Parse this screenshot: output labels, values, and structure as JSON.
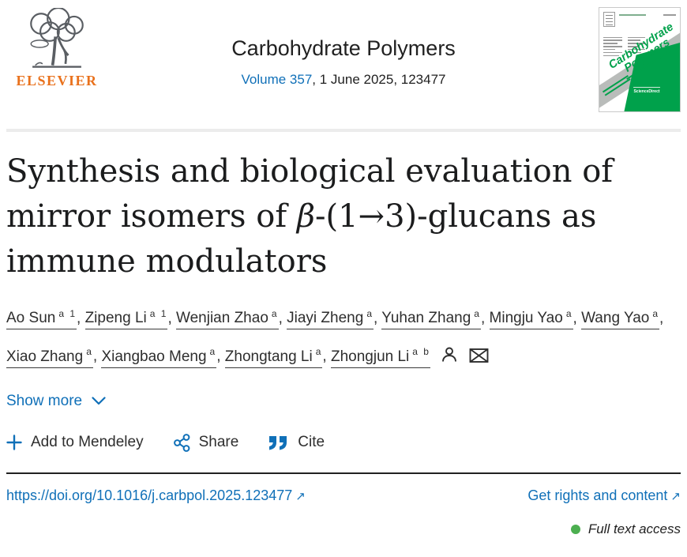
{
  "header": {
    "publisher": "ELSEVIER",
    "journal": "Carbohydrate Polymers",
    "volume_link": "Volume 357",
    "issue_rest": ", 1 June 2025, 123477",
    "cover": {
      "line1": "Carbohydrate",
      "line2": "Polymers",
      "brand": "ScienceDirect"
    }
  },
  "title": {
    "line1": "Synthesis and biological evaluation of",
    "line2_pre": "mirror isomers of ",
    "beta": "β",
    "line2_post": "-(1→3)-glucans as",
    "line3": "immune modulators"
  },
  "authors": [
    {
      "name": "Ao Sun",
      "sup": "a 1",
      "sep": ", "
    },
    {
      "name": "Zipeng Li",
      "sup": "a 1",
      "sep": ", "
    },
    {
      "name": "Wenjian Zhao",
      "sup": "a",
      "sep": ", "
    },
    {
      "name": "Jiayi Zheng",
      "sup": "a",
      "sep": ", "
    },
    {
      "name": "Yuhan Zhang",
      "sup": "a",
      "sep": ", "
    },
    {
      "name": "Mingju Yao",
      "sup": "a",
      "sep": ", "
    },
    {
      "name": "Wang Yao",
      "sup": "a",
      "sep": ", "
    },
    {
      "name": "Xiao Zhang",
      "sup": "a",
      "sep": ", "
    },
    {
      "name": "Xiangbao Meng",
      "sup": "a",
      "sep": ", "
    },
    {
      "name": "Zhongtang Li",
      "sup": "a",
      "sep": ", "
    },
    {
      "name": "Zhongjun Li",
      "sup": "a b",
      "sep": ""
    }
  ],
  "show_more": "Show more",
  "actions": {
    "mendeley": "Add to Mendeley",
    "share": "Share",
    "cite": "Cite"
  },
  "links": {
    "doi": "https://doi.org/10.1016/j.carbpol.2025.123477",
    "rights": "Get rights and content",
    "external_arrow": "↗"
  },
  "access": {
    "label": "Full text access"
  },
  "colors": {
    "link_blue": "#1070b8",
    "elsevier_orange": "#e9711c",
    "cover_green": "#00a14b",
    "access_green": "#4caf50"
  }
}
